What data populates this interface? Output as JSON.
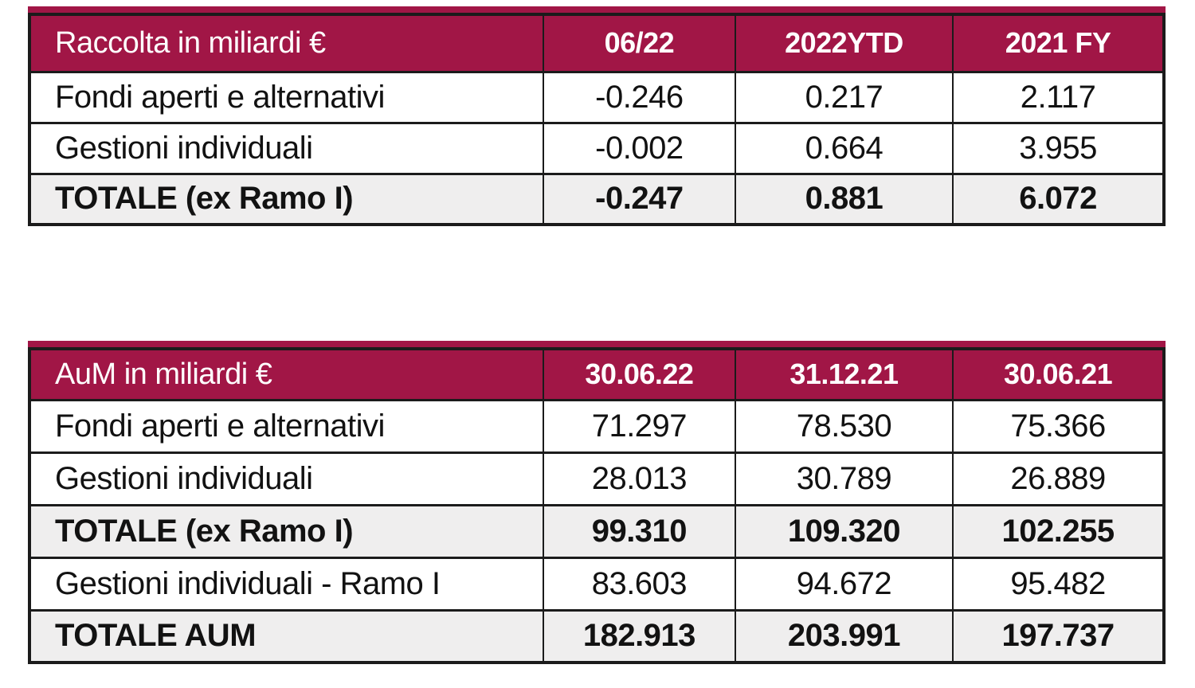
{
  "colors": {
    "maroon": "#A11646",
    "total_row_bg": "#EFEEEE",
    "border": "#1b1b1b"
  },
  "tables": [
    {
      "id": "raccolta",
      "header": {
        "label": "Raccolta in miliardi €",
        "columns": [
          "06/22",
          "2022YTD",
          "2021 FY"
        ]
      },
      "rows": [
        {
          "label": "Fondi aperti e alternativi",
          "values": [
            "-0.246",
            "0.217",
            "2.117"
          ],
          "total": false
        },
        {
          "label": "Gestioni individuali",
          "values": [
            "-0.002",
            "0.664",
            "3.955"
          ],
          "total": false
        },
        {
          "label": "TOTALE (ex Ramo I)",
          "values": [
            "-0.247",
            "0.881",
            "6.072"
          ],
          "total": true
        }
      ]
    },
    {
      "id": "aum",
      "header": {
        "label": "AuM in miliardi €",
        "columns": [
          "30.06.22",
          "31.12.21",
          "30.06.21"
        ]
      },
      "rows": [
        {
          "label": "Fondi aperti e alternativi",
          "values": [
            "71.297",
            "78.530",
            "75.366"
          ],
          "total": false
        },
        {
          "label": "Gestioni individuali",
          "values": [
            "28.013",
            "30.789",
            "26.889"
          ],
          "total": false
        },
        {
          "label": "TOTALE (ex Ramo I)",
          "values": [
            "99.310",
            "109.320",
            "102.255"
          ],
          "total": true
        },
        {
          "label": "Gestioni individuali - Ramo I",
          "values": [
            "83.603",
            "94.672",
            "95.482"
          ],
          "total": false
        },
        {
          "label": "TOTALE AUM",
          "values": [
            "182.913",
            "203.991",
            "197.737"
          ],
          "total": true
        }
      ]
    }
  ]
}
